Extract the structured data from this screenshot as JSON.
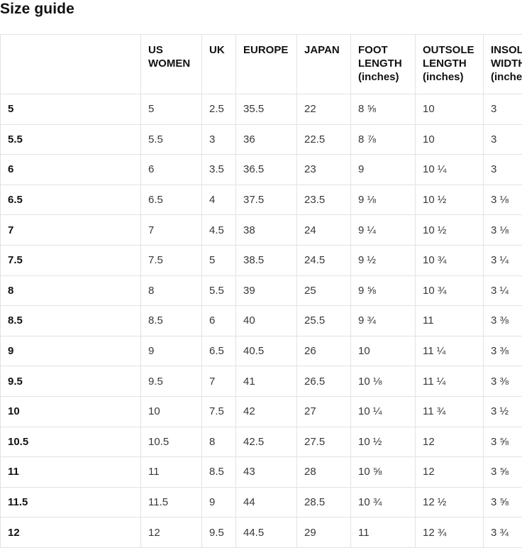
{
  "page": {
    "title": "Size guide"
  },
  "colors": {
    "background": "#ffffff",
    "heading_text": "#111111",
    "cell_text": "#383838",
    "table_border": "#e2e2e2"
  },
  "size_table": {
    "columns": [
      "",
      "US WOMEN",
      "UK",
      "EUROPE",
      "JAPAN",
      "FOOT LENGTH (inches)",
      "OUTSOLE LENGTH (inches)",
      "INSOLE WIDTH (inches)"
    ],
    "rows": [
      {
        "label": "5",
        "us_women": "5",
        "uk": "2.5",
        "europe": "35.5",
        "japan": "22",
        "foot_length": "8 ⅝",
        "outsole_length": "10",
        "insole_width": "3"
      },
      {
        "label": "5.5",
        "us_women": "5.5",
        "uk": "3",
        "europe": "36",
        "japan": "22.5",
        "foot_length": "8 ⅞",
        "outsole_length": "10",
        "insole_width": "3"
      },
      {
        "label": "6",
        "us_women": "6",
        "uk": "3.5",
        "europe": "36.5",
        "japan": "23",
        "foot_length": "9",
        "outsole_length": "10 ¼",
        "insole_width": "3"
      },
      {
        "label": "6.5",
        "us_women": "6.5",
        "uk": "4",
        "europe": "37.5",
        "japan": "23.5",
        "foot_length": "9 ⅛",
        "outsole_length": "10 ½",
        "insole_width": "3 ⅛"
      },
      {
        "label": "7",
        "us_women": "7",
        "uk": "4.5",
        "europe": "38",
        "japan": "24",
        "foot_length": "9 ¼",
        "outsole_length": "10 ½",
        "insole_width": "3 ⅛"
      },
      {
        "label": "7.5",
        "us_women": "7.5",
        "uk": "5",
        "europe": "38.5",
        "japan": "24.5",
        "foot_length": "9 ½",
        "outsole_length": "10 ¾",
        "insole_width": "3 ¼"
      },
      {
        "label": "8",
        "us_women": "8",
        "uk": "5.5",
        "europe": "39",
        "japan": "25",
        "foot_length": "9 ⅝",
        "outsole_length": "10 ¾",
        "insole_width": "3 ¼"
      },
      {
        "label": "8.5",
        "us_women": "8.5",
        "uk": "6",
        "europe": "40",
        "japan": "25.5",
        "foot_length": "9 ¾",
        "outsole_length": "11",
        "insole_width": "3 ⅜"
      },
      {
        "label": "9",
        "us_women": "9",
        "uk": "6.5",
        "europe": "40.5",
        "japan": "26",
        "foot_length": "10",
        "outsole_length": "11 ¼",
        "insole_width": "3 ⅜"
      },
      {
        "label": "9.5",
        "us_women": "9.5",
        "uk": "7",
        "europe": "41",
        "japan": "26.5",
        "foot_length": "10 ⅛",
        "outsole_length": "11 ¼",
        "insole_width": "3 ⅜"
      },
      {
        "label": "10",
        "us_women": "10",
        "uk": "7.5",
        "europe": "42",
        "japan": "27",
        "foot_length": "10 ¼",
        "outsole_length": "11 ¾",
        "insole_width": "3 ½"
      },
      {
        "label": "10.5",
        "us_women": "10.5",
        "uk": "8",
        "europe": "42.5",
        "japan": "27.5",
        "foot_length": "10 ½",
        "outsole_length": "12",
        "insole_width": "3 ⅝"
      },
      {
        "label": "11",
        "us_women": "11",
        "uk": "8.5",
        "europe": "43",
        "japan": "28",
        "foot_length": "10 ⅝",
        "outsole_length": "12",
        "insole_width": "3 ⅝"
      },
      {
        "label": "11.5",
        "us_women": "11.5",
        "uk": "9",
        "europe": "44",
        "japan": "28.5",
        "foot_length": "10 ¾",
        "outsole_length": "12 ½",
        "insole_width": "3 ⅝"
      },
      {
        "label": "12",
        "us_women": "12",
        "uk": "9.5",
        "europe": "44.5",
        "japan": "29",
        "foot_length": "11",
        "outsole_length": "12 ¾",
        "insole_width": "3 ¾"
      }
    ]
  }
}
